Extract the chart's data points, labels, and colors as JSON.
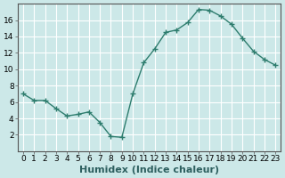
{
  "x": [
    0,
    1,
    2,
    3,
    4,
    5,
    6,
    7,
    8,
    9,
    10,
    11,
    12,
    13,
    14,
    15,
    16,
    17,
    18,
    19,
    20,
    21,
    22,
    23
  ],
  "y": [
    7.0,
    6.2,
    6.2,
    5.2,
    4.3,
    4.5,
    4.8,
    3.5,
    1.8,
    1.7,
    7.0,
    10.8,
    12.5,
    14.5,
    14.8,
    15.7,
    17.3,
    17.2,
    16.5,
    15.5,
    13.8,
    12.2,
    11.2,
    10.5
  ],
  "xlabel": "Humidex (Indice chaleur)",
  "xlim": [
    -0.5,
    23.5
  ],
  "ylim": [
    0,
    18
  ],
  "yticks": [
    2,
    4,
    6,
    8,
    10,
    12,
    14,
    16
  ],
  "xticks": [
    0,
    1,
    2,
    3,
    4,
    5,
    6,
    7,
    8,
    9,
    10,
    11,
    12,
    13,
    14,
    15,
    16,
    17,
    18,
    19,
    20,
    21,
    22,
    23
  ],
  "line_color": "#2e7d6e",
  "marker": "+",
  "bg_color": "#cce8e8",
  "grid_color": "#ffffff",
  "tick_label_size": 6.5,
  "xlabel_size": 8,
  "figw": 3.2,
  "figh": 2.0,
  "dpi": 100
}
